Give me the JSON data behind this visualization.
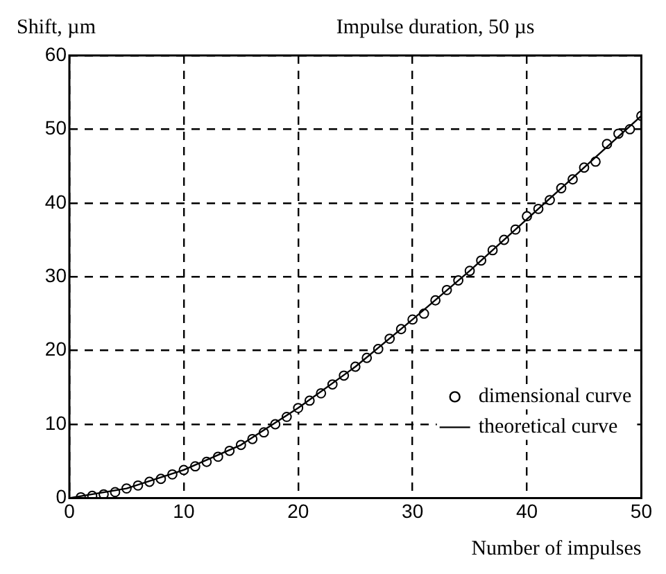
{
  "chart_data": {
    "type": "scatter",
    "title": "Impulse duration, 50 µs",
    "xlabel": "Number of impulses",
    "ylabel": "Shift, µm",
    "xlim": [
      0,
      50
    ],
    "xticks": [
      0,
      10,
      20,
      30,
      40,
      50
    ],
    "ylim": [
      0,
      60
    ],
    "yticks": [
      0,
      10,
      20,
      30,
      40,
      50,
      60
    ],
    "grid": true,
    "legend": "bottom right",
    "series": [
      {
        "name": "dimensional curve",
        "type": "scatter",
        "marker": "circle",
        "color": "#000000",
        "x": [
          1,
          2,
          3,
          4,
          5,
          6,
          7,
          8,
          9,
          10,
          11,
          12,
          13,
          14,
          15,
          16,
          17,
          18,
          19,
          20,
          21,
          22,
          23,
          24,
          25,
          26,
          27,
          28,
          29,
          30,
          31,
          32,
          33,
          34,
          35,
          36,
          37,
          38,
          39,
          40,
          41,
          42,
          43,
          44,
          45,
          46,
          47,
          48,
          49,
          50
        ],
        "values": [
          0.1,
          0.3,
          0.5,
          0.8,
          1.3,
          1.7,
          2.2,
          2.6,
          3.2,
          3.8,
          4.3,
          4.9,
          5.6,
          6.4,
          7.2,
          8.0,
          8.9,
          10.0,
          11.0,
          12.2,
          13.2,
          14.2,
          15.4,
          16.6,
          17.8,
          19.0,
          20.2,
          21.6,
          22.9,
          24.2,
          25.0,
          26.8,
          28.2,
          29.5,
          30.8,
          32.2,
          33.6,
          35.0,
          36.4,
          38.2,
          39.2,
          40.4,
          42.0,
          43.2,
          44.8,
          45.6,
          48.0,
          49.4,
          50.0,
          51.8
        ]
      },
      {
        "name": "theoretical curve",
        "type": "line",
        "marker": "none",
        "line_style": "solid",
        "color": "#000000",
        "x": [
          0,
          5,
          10,
          15,
          20,
          25,
          30,
          35,
          40,
          45,
          50
        ],
        "values": [
          0,
          1.3,
          3.8,
          7.2,
          12.2,
          17.8,
          24.2,
          30.8,
          37.8,
          44.8,
          51.8
        ]
      }
    ]
  }
}
